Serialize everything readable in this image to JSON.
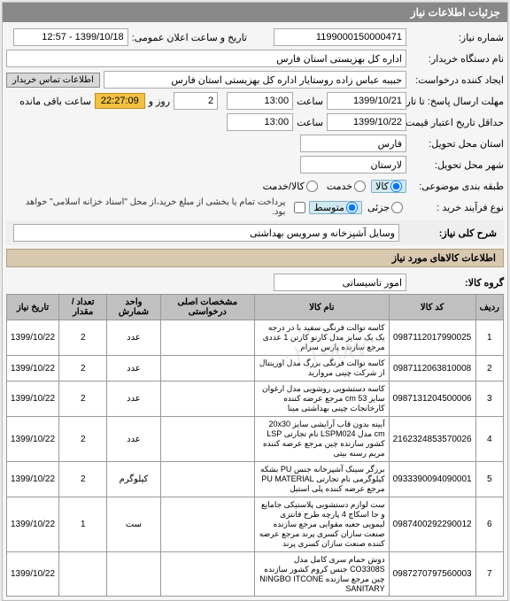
{
  "header": {
    "title": "جزئیات اطلاعات نیاز"
  },
  "form": {
    "request_no_label": "شماره نیاز:",
    "request_no": "1199000150000471",
    "pub_date_label": "تاریخ و ساعت اعلان عمومی:",
    "pub_date": "1399/10/18 - 12:57",
    "buyer_org_label": "نام دستگاه خریدار:",
    "buyer_org": "اداره کل بهزیستی استان فارس",
    "creator_label": "ایجاد کننده درخواست:",
    "creator": "حبیبه عباس زاده روستایار اداره کل بهزیستی استان فارس",
    "contact_btn": "اطلاعات تماس خریدار",
    "deadline_label": "مهلت ارسال پاسخ: تا تاریخ:",
    "deadline_date": "1399/10/21",
    "deadline_hour": "13:00",
    "hour_lbl": "ساعت",
    "day_lbl": "روز و",
    "remain_lbl": "ساعت باقی مانده",
    "remain_days": "2",
    "remain_time": "22:27:09",
    "validity_label": "حداقل تاریخ اعتبار قیمت: تا تاریخ:",
    "validity_date": "1399/10/22",
    "validity_hour": "13:00",
    "deliver_prov_label": "استان محل تحویل:",
    "deliver_prov": "فارس",
    "deliver_city_label": "شهر محل تحویل:",
    "deliver_city": "لارستان",
    "cat_label": "طبقه بندی موضوعی:",
    "cat_goods": "کالا",
    "cat_service": "خدمت",
    "cat_combo": "کالا/خدمت",
    "process_label": "نوع فرآیند خرید :",
    "proc_low": "جزئی",
    "proc_mid": "متوسط",
    "pay_chk": "پرداخت تمام یا بخشی از مبلغ خرید،از محل \"اسناد خزانه اسلامی\" خواهد بود.",
    "desc_label": "شرح کلی نیاز:",
    "desc": "وسایل آشپزخانه و سرویس بهداشتی",
    "items_header": "اطلاعات کالاهای مورد نیاز",
    "group_label": "گروه کالا:",
    "group": "امور تاسیساتی"
  },
  "table": {
    "cols": [
      "ردیف",
      "کد کالا",
      "نام کالا",
      "مشخصات اصلی درخواستی",
      "واحد شمارش",
      "تعداد / مقدار",
      "تاریخ نیاز"
    ],
    "rows": [
      {
        "n": "1",
        "code": "0987112017990025",
        "name": "کاسه توالت فرنگی سفید با در درجه یک یک سایز مدل کارنو کارتن 1 عددی مرجع سازنده پارس سرام",
        "spec": "",
        "unit": "عدد",
        "qty": "2",
        "date": "1399/10/22"
      },
      {
        "n": "2",
        "code": "0987112063810008",
        "name": "کاسه توالت فرنگی بزرگ مدل اورینتال از شرکت چینی مروارید",
        "spec": "",
        "unit": "عدد",
        "qty": "2",
        "date": "1399/10/22"
      },
      {
        "n": "3",
        "code": "0987131204500006",
        "name": "کاسه دستشویی روشویی مدل ارغوان سایز cm 53 مرجع عرضه کننده کارخانجات چینی بهداشتی مینا",
        "spec": "",
        "unit": "عدد",
        "qty": "2",
        "date": "1399/10/22"
      },
      {
        "n": "4",
        "code": "2162324853570026",
        "name": "آیینه بدون قاب آرایشی سایز 20x30 cm مدل LSPM024 نام تجارتی LSP کشور سازنده چین مرجع عرضه کننده مریم رسنه بیتی",
        "spec": "",
        "unit": "عدد",
        "qty": "2",
        "date": "1399/10/22"
      },
      {
        "n": "5",
        "code": "0933390094090001",
        "name": "برزگر سینک آشپزخانه جنس PU بشکه کیلوگرمی نام تجارتی PU MATERIAL مرجع عرضه کننده پلی استیل",
        "spec": "",
        "unit": "کیلوگرم",
        "qty": "2",
        "date": "1399/10/22"
      },
      {
        "n": "6",
        "code": "0987400292290012",
        "name": "ست لوازم دستشویی پلاستیکی جامایع و جا اسکاچ 4 پارچه طرح فانتزی لیمویی جعبه مقوایی مرجع سازنده صنعت سازان کسری پرند مرجع عرضه کننده صنعت سازان کسری پرند",
        "spec": "",
        "unit": "ست",
        "qty": "1",
        "date": "1399/10/22"
      },
      {
        "n": "7",
        "code": "0987270797560003",
        "name": "دوش حمام سری کامل مدل CO3308S جنس کروم کشور سازنده چین مرجع سازنده NINGBO ITCONE SANITARY",
        "spec": "",
        "unit": "",
        "qty": "",
        "date": "1399/10/22"
      }
    ]
  },
  "watermark": "۰۲۱-۸۸۷..."
}
